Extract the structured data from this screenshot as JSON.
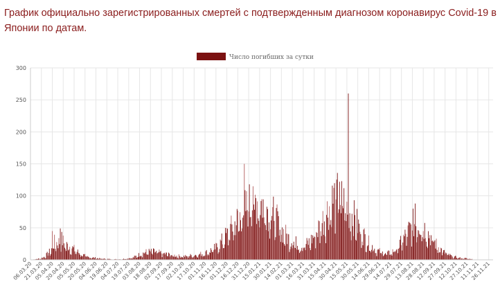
{
  "page": {
    "title": "График официально зарегистрированных смертей с подтвержденным диагнозом коронавирус Covid-19 в Японии по датам."
  },
  "colors": {
    "bar": "#7b1111",
    "bar_light": "#b05a5a",
    "grid": "#e6e6e6",
    "axis": "#cccccc"
  },
  "chart_data": {
    "type": "bar",
    "title": "",
    "xlabel": "",
    "ylabel": "",
    "ylim": [
      0,
      300
    ],
    "y_ticks": [
      0,
      50,
      100,
      150,
      200,
      250,
      300
    ],
    "grid": true,
    "legend_position": "top-center",
    "series": [
      {
        "name": "Число погибших за сутки",
        "keypoints": [
          {
            "day": 0,
            "value": 0
          },
          {
            "day": 14,
            "value": 2
          },
          {
            "day": 20,
            "value": 5
          },
          {
            "day": 28,
            "value": 14
          },
          {
            "day": 33,
            "value": 26
          },
          {
            "day": 38,
            "value": 25
          },
          {
            "day": 43,
            "value": 30
          },
          {
            "day": 48,
            "value": 22
          },
          {
            "day": 55,
            "value": 20
          },
          {
            "day": 62,
            "value": 14
          },
          {
            "day": 70,
            "value": 8
          },
          {
            "day": 80,
            "value": 4
          },
          {
            "day": 95,
            "value": 2
          },
          {
            "day": 110,
            "value": 1
          },
          {
            "day": 125,
            "value": 1
          },
          {
            "day": 140,
            "value": 3
          },
          {
            "day": 150,
            "value": 8
          },
          {
            "day": 160,
            "value": 12
          },
          {
            "day": 170,
            "value": 12
          },
          {
            "day": 180,
            "value": 10
          },
          {
            "day": 195,
            "value": 7
          },
          {
            "day": 210,
            "value": 5
          },
          {
            "day": 225,
            "value": 7
          },
          {
            "day": 240,
            "value": 10
          },
          {
            "day": 255,
            "value": 18
          },
          {
            "day": 265,
            "value": 30
          },
          {
            "day": 275,
            "value": 45
          },
          {
            "day": 285,
            "value": 60
          },
          {
            "day": 295,
            "value": 75
          },
          {
            "day": 305,
            "value": 85
          },
          {
            "day": 312,
            "value": 90
          },
          {
            "day": 318,
            "value": 85
          },
          {
            "day": 325,
            "value": 80
          },
          {
            "day": 335,
            "value": 65
          },
          {
            "day": 345,
            "value": 45
          },
          {
            "day": 355,
            "value": 32
          },
          {
            "day": 365,
            "value": 25
          },
          {
            "day": 375,
            "value": 20
          },
          {
            "day": 385,
            "value": 28
          },
          {
            "day": 395,
            "value": 45
          },
          {
            "day": 405,
            "value": 65
          },
          {
            "day": 413,
            "value": 85
          },
          {
            "day": 420,
            "value": 95
          },
          {
            "day": 428,
            "value": 88
          },
          {
            "day": 435,
            "value": 80
          },
          {
            "day": 445,
            "value": 62
          },
          {
            "day": 455,
            "value": 42
          },
          {
            "day": 465,
            "value": 25
          },
          {
            "day": 475,
            "value": 15
          },
          {
            "day": 485,
            "value": 10
          },
          {
            "day": 495,
            "value": 10
          },
          {
            "day": 505,
            "value": 18
          },
          {
            "day": 515,
            "value": 35
          },
          {
            "day": 525,
            "value": 52
          },
          {
            "day": 532,
            "value": 58
          },
          {
            "day": 540,
            "value": 50
          },
          {
            "day": 550,
            "value": 35
          },
          {
            "day": 560,
            "value": 20
          },
          {
            "day": 570,
            "value": 10
          },
          {
            "day": 580,
            "value": 5
          },
          {
            "day": 590,
            "value": 3
          },
          {
            "day": 600,
            "value": 2
          },
          {
            "day": 607,
            "value": 1
          }
        ],
        "spikes": [
          {
            "day": 30,
            "value": 45
          },
          {
            "day": 41,
            "value": 49
          },
          {
            "day": 294,
            "value": 150
          },
          {
            "day": 301,
            "value": 118
          },
          {
            "day": 306,
            "value": 115
          },
          {
            "day": 425,
            "value": 122
          },
          {
            "day": 437,
            "value": 260
          },
          {
            "day": 529,
            "value": 88
          }
        ]
      }
    ],
    "x_tick_labels": [
      "06.03.20",
      "21.03.20",
      "05.04.20",
      "20.04.20",
      "05.05.20",
      "20.05.20",
      "04.06.20",
      "19.06.20",
      "04.07.20",
      "19.07.20",
      "03.08.20",
      "18.08.20",
      "02.09.20",
      "17.09.20",
      "02.10.20",
      "17.10.20",
      "01.11.20",
      "16.11.20",
      "01.12.20",
      "16.12.20",
      "31.12.20",
      "15.01.21",
      "30.01.21",
      "14.02.21",
      "01.03.21",
      "16.03.21",
      "31.03.21",
      "15.04.21",
      "30.04.21",
      "15.05.21",
      "30.05.21",
      "14.06.21",
      "29.06.21",
      "14.07.21",
      "29.07.21",
      "13.08.21",
      "28.08.21",
      "12.09.21",
      "27.09.21",
      "12.10.21",
      "27.10.21",
      "11.11.21",
      "26.11.21"
    ],
    "days_between_ticks": 15
  }
}
